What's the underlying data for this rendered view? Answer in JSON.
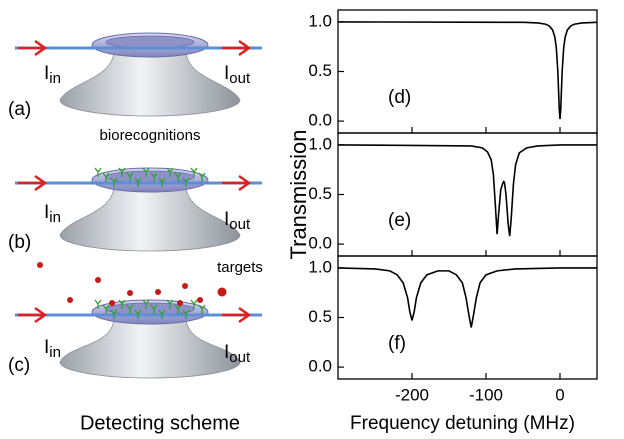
{
  "diagram": {
    "panels": [
      {
        "label": "(a)",
        "input": {
          "main": "I",
          "sub": "in"
        },
        "output": {
          "main": "I",
          "sub": "out"
        }
      },
      {
        "label": "(b)",
        "input": {
          "main": "I",
          "sub": "in"
        },
        "output": {
          "main": "I",
          "sub": "out"
        }
      },
      {
        "label": "(c)",
        "input": {
          "main": "I",
          "sub": "in"
        },
        "output": {
          "main": "I",
          "sub": "out"
        }
      }
    ],
    "biorecognitions": "biorecognitions",
    "targets": "targets",
    "caption": "Detecting scheme"
  },
  "chart_data": [
    {
      "type": "line",
      "label": "(d)",
      "color": "#000000",
      "x": [
        -300,
        -50,
        -30,
        -20,
        -15,
        -10,
        -7,
        -5,
        -3,
        -2,
        -1,
        0,
        1,
        2,
        3,
        5,
        7,
        10,
        15,
        20,
        30,
        50
      ],
      "values": [
        1.0,
        0.996,
        0.99,
        0.978,
        0.962,
        0.919,
        0.848,
        0.741,
        0.51,
        0.321,
        0.118,
        0.02,
        0.118,
        0.321,
        0.51,
        0.741,
        0.848,
        0.919,
        0.962,
        0.978,
        0.99,
        0.996
      ],
      "xlim": [
        -300,
        50
      ],
      "ylim": [
        -0.12,
        1.12
      ],
      "xticks": [
        -200,
        -100,
        0
      ],
      "yticks": [
        {
          "value": 0,
          "label": "0.0"
        },
        0.5,
        {
          "value": 1,
          "label": "1.0"
        }
      ]
    },
    {
      "type": "line",
      "label": "(e)",
      "color": "#000000",
      "ylabel": "Transmission",
      "x": [
        -300,
        -120,
        -105,
        -98,
        -93,
        -90,
        -87,
        -85,
        -83,
        -80,
        -77,
        -76,
        -75,
        -73,
        -70,
        -68,
        -66,
        -63,
        -60,
        -55,
        -45,
        -30,
        0,
        50
      ],
      "values": [
        1.0,
        0.99,
        0.97,
        0.93,
        0.85,
        0.7,
        0.35,
        0.1,
        0.3,
        0.55,
        0.62,
        0.63,
        0.62,
        0.5,
        0.2,
        0.08,
        0.25,
        0.6,
        0.8,
        0.92,
        0.97,
        0.99,
        1.0,
        1.0
      ],
      "xlim": [
        -300,
        50
      ],
      "ylim": [
        -0.12,
        1.12
      ],
      "xticks": [
        -200,
        -100,
        0
      ],
      "yticks": [
        {
          "value": 0,
          "label": "0.0"
        },
        0.5,
        {
          "value": 1,
          "label": "1.0"
        }
      ]
    },
    {
      "type": "line",
      "label": "(f)",
      "color": "#000000",
      "xlabel": "Frequency detuning (MHz)",
      "x": [
        -300,
        -250,
        -230,
        -220,
        -212,
        -206,
        -203,
        -200,
        -197,
        -194,
        -188,
        -180,
        -165,
        -150,
        -140,
        -132,
        -127,
        -123,
        -120,
        -117,
        -113,
        -108,
        -100,
        -85,
        -60,
        0,
        50
      ],
      "values": [
        1.0,
        0.99,
        0.97,
        0.93,
        0.85,
        0.7,
        0.56,
        0.47,
        0.56,
        0.7,
        0.85,
        0.93,
        0.97,
        0.97,
        0.93,
        0.85,
        0.7,
        0.52,
        0.4,
        0.52,
        0.7,
        0.85,
        0.93,
        0.97,
        0.99,
        1.0,
        1.0
      ],
      "xlim": [
        -300,
        50
      ],
      "ylim": [
        -0.12,
        1.12
      ],
      "xticks": [
        -200,
        -100,
        0
      ],
      "yticks": [
        {
          "value": 0,
          "label": "0.0"
        },
        0.5,
        {
          "value": 1,
          "label": "1.0"
        }
      ]
    }
  ]
}
